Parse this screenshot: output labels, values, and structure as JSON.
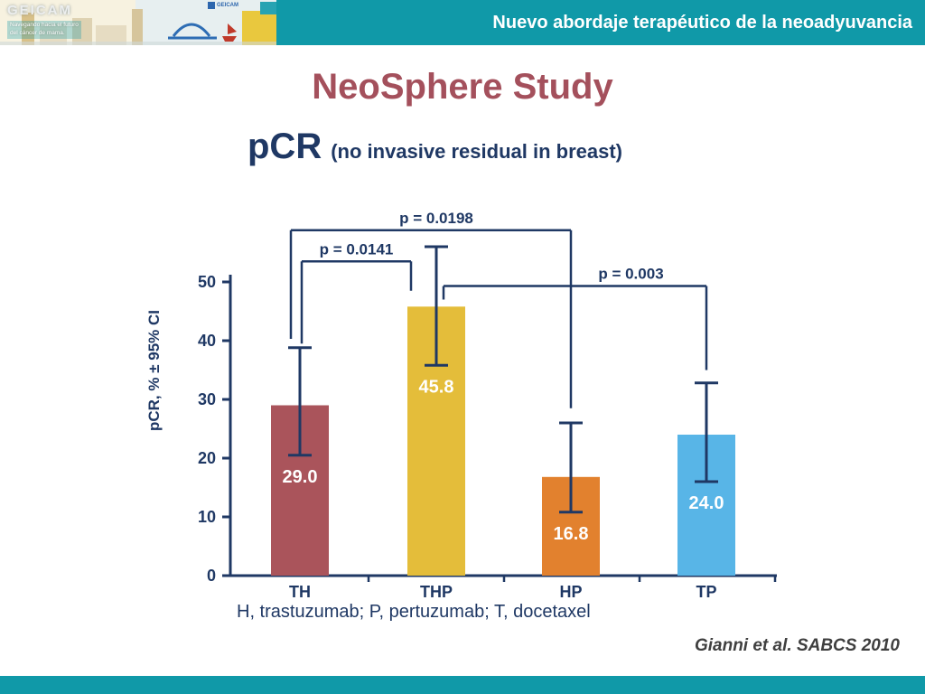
{
  "header": {
    "bar_title": "Nuevo abordaje terapéutico de la neoadyuvancia",
    "logo": {
      "brand": "GEICAM",
      "tagline_line1": "Navegando hacia el futuro",
      "tagline_line2": "del cáncer de mama.",
      "mini_logo_text": "GEICAM"
    }
  },
  "slide": {
    "title": "NeoSphere Study",
    "subtitle_main": "pCR",
    "subtitle_note": "(no invasive residual in breast)",
    "citation": "Gianni et al. SABCS 2010"
  },
  "colors": {
    "teal": "#1099a8",
    "navy": "#1f3864",
    "title_maroon": "#a4505c"
  },
  "chart_data": {
    "type": "bar",
    "title": "pCR (no invasive residual in breast)",
    "ylabel": "pCR, % ± 95% CI",
    "xlabel": "",
    "ylim": [
      0,
      50
    ],
    "yticks": [
      0,
      10,
      20,
      30,
      40,
      50
    ],
    "grid": "off",
    "legend": "none",
    "categories": [
      "TH",
      "THP",
      "HP",
      "TP"
    ],
    "values": [
      29.0,
      45.8,
      16.8,
      24.0
    ],
    "value_labels": [
      "29.0",
      "45.8",
      "16.8",
      "24.0"
    ],
    "bar_colors": [
      "#aa545b",
      "#e4bd3a",
      "#e2812e",
      "#58b5e7"
    ],
    "error_bars_95ci": [
      {
        "low": 20.5,
        "high": 38.8
      },
      {
        "low": 35.8,
        "high": 56.0
      },
      {
        "low": 10.8,
        "high": 26.0
      },
      {
        "low": 16.0,
        "high": 32.8
      }
    ],
    "comparisons": [
      {
        "label": "p = 0.0141",
        "from": "TH",
        "to": "THP",
        "from_index": 0,
        "to_index": 1,
        "bar_y": 53.5,
        "from_drop": 39.5,
        "to_drop": 48.5
      },
      {
        "label": "p = 0.0198",
        "from": "TH",
        "to": "HP",
        "from_index": 0,
        "to_index": 2,
        "bar_y": 58.8,
        "from_drop": 40.3,
        "to_drop": 28.5
      },
      {
        "label": "p = 0.003",
        "from": "THP",
        "to": "TP",
        "from_index": 1,
        "to_index": 3,
        "bar_y": 49.3,
        "from_drop": 47.0,
        "to_drop": 35.0
      }
    ],
    "footnote": "H, trastuzumab; P, pertuzumab; T, docetaxel"
  }
}
